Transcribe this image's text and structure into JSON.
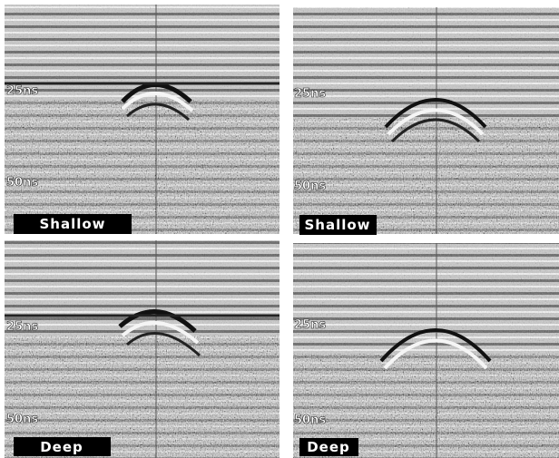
{
  "panels": [
    {
      "time_labels": [
        "25ns",
        "50ns"
      ],
      "caption": "Shallow"
    },
    {
      "time_labels": [
        "25ns",
        "50ns"
      ],
      "caption": "Shallow"
    },
    {
      "time_labels": [
        "25ns",
        "50ns"
      ],
      "caption": "Deep"
    },
    {
      "time_labels": [
        "25ns",
        "50ns"
      ],
      "caption": "Deep"
    }
  ]
}
